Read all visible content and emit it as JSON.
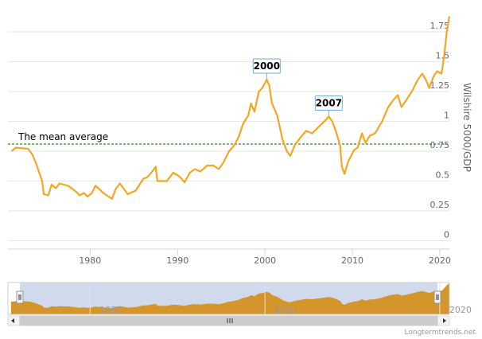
{
  "chart_data": {
    "type": "line",
    "ylabel": "Wilshire 5000/GDP",
    "x": [
      1971,
      1971.5,
      1972.9,
      1973.4,
      1973.8,
      1974.5,
      1974.7,
      1975.2,
      1975.6,
      1976.1,
      1976.5,
      1977.5,
      1978.4,
      1978.8,
      1979.3,
      1979.7,
      1980.2,
      1980.6,
      1981.1,
      1981.5,
      1982.5,
      1982.9,
      1983.4,
      1983.8,
      1984.3,
      1985.2,
      1986.1,
      1986.5,
      1987,
      1987.5,
      1987.7,
      1988.8,
      1989.5,
      1990.2,
      1990.8,
      1991.4,
      1992,
      1992.6,
      1993.4,
      1994.1,
      1994.7,
      1995.2,
      1995.9,
      1996.5,
      1997,
      1997.5,
      1998.1,
      1998.4,
      1998.8,
      1999.3,
      1999.7,
      2000.2,
      2000.5,
      2000.8,
      2001.4,
      2002,
      2002.5,
      2002.9,
      2003.4,
      2004.1,
      2004.7,
      2005.4,
      2006.1,
      2006.8,
      2007.3,
      2007.7,
      2008.1,
      2008.6,
      2008.8,
      2009.1,
      2009.5,
      2010.2,
      2010.6,
      2011.1,
      2011.5,
      2012,
      2012.6,
      2013.4,
      2014.1,
      2014.7,
      2015.2,
      2015.6,
      2016.1,
      2016.8,
      2017.5,
      2018,
      2018.4,
      2018.8,
      2019.3,
      2019.7,
      2020.2,
      2020.5,
      2020.8,
      2021.1
    ],
    "values": [
      0.75,
      0.78,
      0.77,
      0.72,
      0.65,
      0.5,
      0.39,
      0.38,
      0.47,
      0.44,
      0.48,
      0.46,
      0.41,
      0.38,
      0.4,
      0.37,
      0.4,
      0.46,
      0.43,
      0.4,
      0.35,
      0.43,
      0.48,
      0.44,
      0.39,
      0.42,
      0.52,
      0.53,
      0.57,
      0.62,
      0.5,
      0.5,
      0.57,
      0.54,
      0.49,
      0.57,
      0.6,
      0.58,
      0.63,
      0.63,
      0.6,
      0.65,
      0.75,
      0.8,
      0.87,
      0.98,
      1.05,
      1.15,
      1.08,
      1.25,
      1.28,
      1.35,
      1.3,
      1.15,
      1.05,
      0.85,
      0.75,
      0.71,
      0.8,
      0.87,
      0.92,
      0.9,
      0.95,
      1.0,
      1.04,
      1.0,
      0.92,
      0.8,
      0.62,
      0.56,
      0.66,
      0.76,
      0.78,
      0.9,
      0.82,
      0.88,
      0.9,
      1.0,
      1.12,
      1.18,
      1.22,
      1.12,
      1.17,
      1.25,
      1.35,
      1.4,
      1.35,
      1.28,
      1.38,
      1.42,
      1.4,
      1.55,
      1.75,
      1.88
    ],
    "color": "#f5a623",
    "xlim": [
      1970.6,
      2021.1
    ],
    "xticks": [
      1980,
      1990,
      2000,
      2010,
      2020
    ],
    "ylim": [
      -0.07,
      1.95
    ],
    "yticks": [
      0,
      0.25,
      0.5,
      0.75,
      1,
      1.25,
      1.5,
      1.75
    ],
    "grid": true,
    "mean": {
      "label": "The mean average",
      "value": 0.81,
      "color": "#2e8b2e"
    },
    "annotations": [
      {
        "label": "2000",
        "x": 2000.2,
        "y": 1.35
      },
      {
        "label": "2007",
        "x": 2007.3,
        "y": 1.04
      }
    ],
    "navigator": {
      "color": "#d4952b",
      "xticks": [
        1980,
        2000,
        2020
      ]
    },
    "credits": "Longtermtrends.net"
  }
}
